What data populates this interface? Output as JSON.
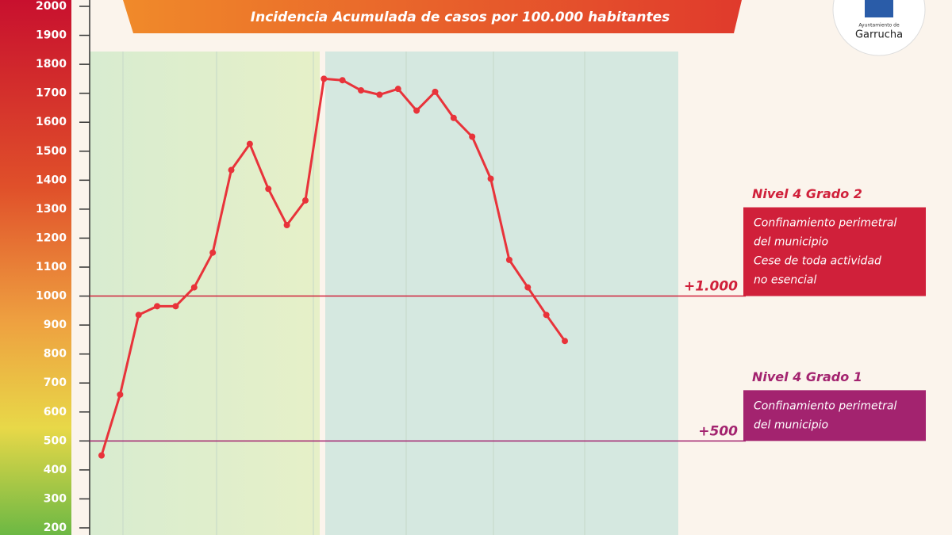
{
  "chart_data": {
    "type": "line",
    "subtitle": "Incidencia Acumulada de casos por 100.000 habitantes",
    "logo_small": "Ayuntamiento de",
    "logo_name": "Garrucha",
    "categories": [
      null,
      null,
      null,
      null,
      null,
      null,
      null,
      null,
      null,
      null,
      null,
      null,
      null,
      null,
      null,
      null,
      null,
      null,
      null,
      null,
      null,
      null,
      null,
      null,
      null,
      null
    ],
    "series": [
      {
        "color": "#e8333a",
        "values": [
          450,
          660,
          935,
          965,
          965,
          1030,
          1150,
          1435,
          1525,
          1370,
          1245,
          1330,
          1750,
          1745,
          1710,
          1695,
          1715,
          1640,
          1705,
          1615,
          1550,
          1405,
          1125,
          1030,
          935,
          845
        ]
      }
    ],
    "ylim": [
      200,
      2000
    ],
    "yticks": [
      200,
      300,
      400,
      500,
      600,
      700,
      800,
      900,
      1000,
      1100,
      1200,
      1300,
      1400,
      1500,
      1600,
      1700,
      1800,
      1900,
      2000
    ],
    "thresholds": [
      {
        "value": 1000,
        "label": "+1.000",
        "title": "Nivel 4 Grado 2",
        "color": "#d0203a",
        "text": [
          "Confinamiento perimetral",
          "del municipio",
          "Cese de toda actividad",
          "no esencial"
        ]
      },
      {
        "value": 500,
        "label": "+500",
        "title": "Nivel 4 Grado 1",
        "color": "#a3236f",
        "text": [
          "Confinamiento perimetral",
          "del municipio"
        ]
      }
    ]
  }
}
